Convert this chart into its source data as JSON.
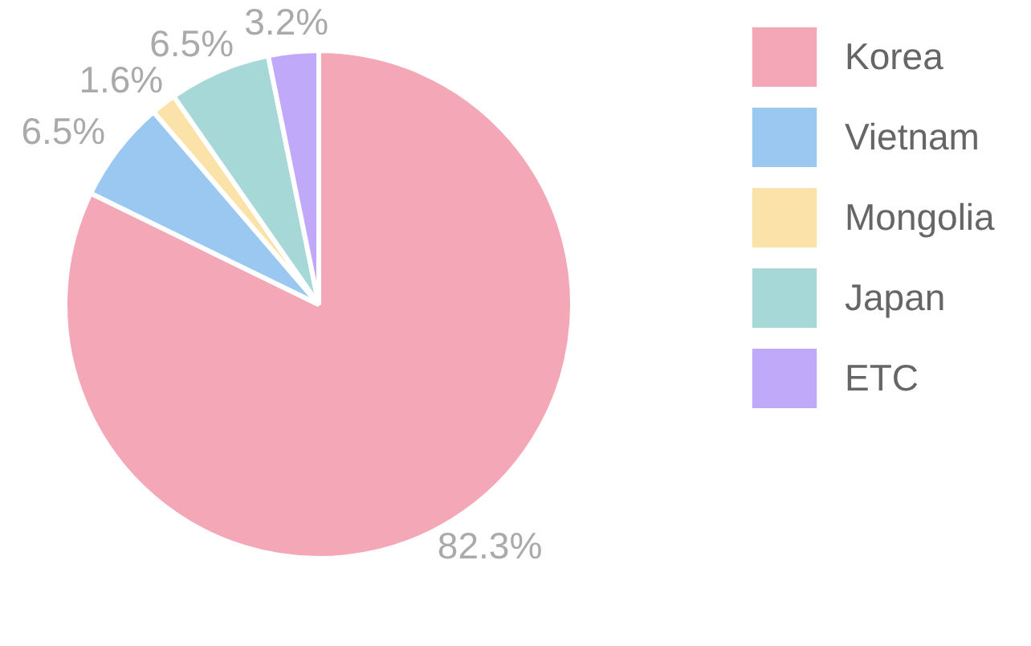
{
  "chart_data": {
    "type": "pie",
    "categories": [
      "Korea",
      "Vietnam",
      "Mongolia",
      "Japan",
      "ETC"
    ],
    "values": [
      82.3,
      6.5,
      1.6,
      6.5,
      3.2
    ],
    "colors": [
      "#f4a7b6",
      "#9ac8f0",
      "#fae2a8",
      "#a6d8d8",
      "#c0a9f8"
    ],
    "value_labels": [
      "82.3%",
      "6.5%",
      "1.6%",
      "6.5%",
      "3.2%"
    ],
    "legend": "right"
  }
}
